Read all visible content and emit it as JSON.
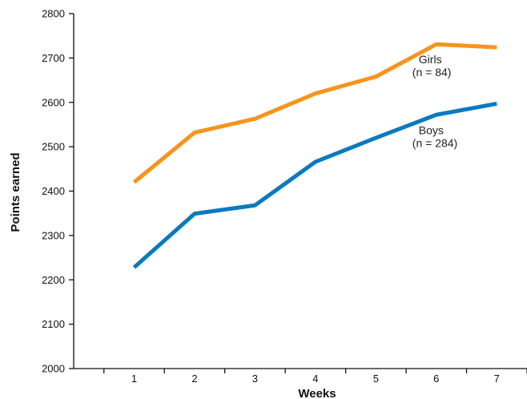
{
  "chart_data": {
    "type": "line",
    "xlabel": "Weeks",
    "ylabel": "Points earned",
    "x": [
      1,
      2,
      3,
      4,
      5,
      6,
      7
    ],
    "xlim": [
      0,
      7.5
    ],
    "ylim": [
      2000,
      2800
    ],
    "yticks": [
      2000,
      2100,
      2200,
      2300,
      2400,
      2500,
      2600,
      2700,
      2800
    ],
    "grid": false,
    "series": [
      {
        "name": "Girls",
        "sublabel": "(n = 84)",
        "color": "#F7941D",
        "values": [
          2420,
          2532,
          2563,
          2620,
          2658,
          2731,
          2724
        ]
      },
      {
        "name": "Boys",
        "sublabel": "(n = 284)",
        "color": "#0A7AC0",
        "values": [
          2228,
          2349,
          2368,
          2466,
          2520,
          2572,
          2597
        ]
      }
    ]
  }
}
